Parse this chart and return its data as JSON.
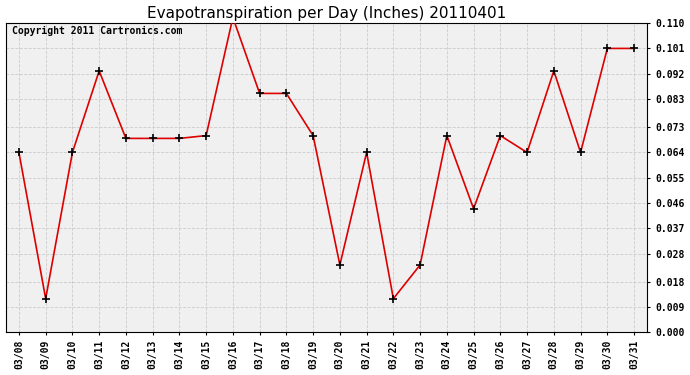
{
  "title": "Evapotranspiration per Day (Inches) 20110401",
  "copyright": "Copyright 2011 Cartronics.com",
  "dates": [
    "03/08",
    "03/09",
    "03/10",
    "03/11",
    "03/12",
    "03/13",
    "03/14",
    "03/15",
    "03/16",
    "03/17",
    "03/18",
    "03/19",
    "03/20",
    "03/21",
    "03/22",
    "03/23",
    "03/24",
    "03/25",
    "03/26",
    "03/27",
    "03/28",
    "03/29",
    "03/30",
    "03/31"
  ],
  "values": [
    0.064,
    0.012,
    0.064,
    0.093,
    0.069,
    0.069,
    0.069,
    0.07,
    0.112,
    0.085,
    0.085,
    0.07,
    0.024,
    0.064,
    0.012,
    0.024,
    0.07,
    0.044,
    0.07,
    0.064,
    0.093,
    0.064,
    0.101,
    0.101
  ],
  "ylim": [
    0.0,
    0.11
  ],
  "yticks": [
    0.0,
    0.009,
    0.018,
    0.028,
    0.037,
    0.046,
    0.055,
    0.064,
    0.073,
    0.083,
    0.092,
    0.101,
    0.11
  ],
  "line_color": "#dd0000",
  "marker": "+",
  "marker_color": "#000000",
  "bg_color": "#ffffff",
  "plot_bg_color": "#f0f0f0",
  "grid_color": "#cccccc",
  "title_fontsize": 11,
  "copyright_fontsize": 7,
  "tick_fontsize": 7,
  "ytick_fontsize": 7
}
